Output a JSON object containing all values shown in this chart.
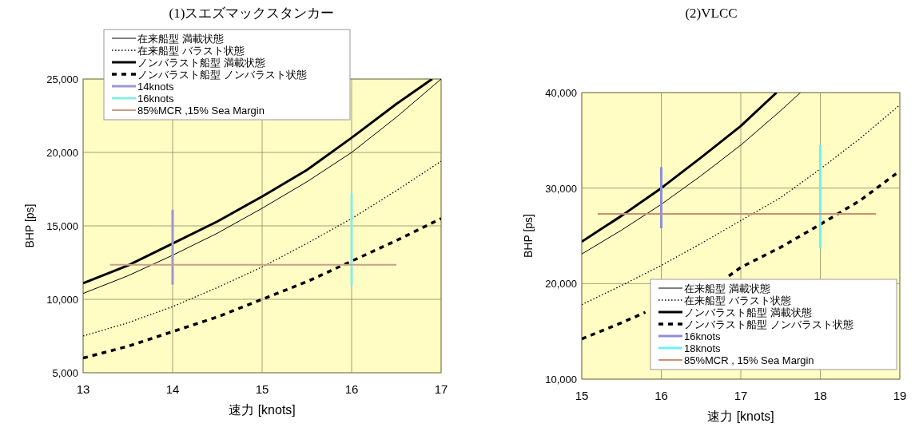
{
  "chart_data": [
    {
      "type": "line",
      "title": "(1)スエズマックスタンカー",
      "xlabel": "速力 [knots]",
      "ylabel": "BHP [ps]",
      "xlim": [
        13,
        17
      ],
      "ylim": [
        5000,
        25000
      ],
      "xticks": [
        13,
        14,
        15,
        16,
        17
      ],
      "yticks": [
        {
          "value": 5000,
          "label": "5,000"
        },
        {
          "value": 10000,
          "label": "10,000"
        },
        {
          "value": 15000,
          "label": "15,000"
        },
        {
          "value": 20000,
          "label": "20,000"
        },
        {
          "value": 25000,
          "label": "25,000"
        }
      ],
      "grid": true,
      "legend": "top left",
      "series": [
        {
          "name": "在来船型 満載状態",
          "color": "#000000",
          "line_style": "solid",
          "x": [
            13,
            13.5,
            14,
            14.5,
            15,
            15.5,
            16,
            16.5,
            17
          ],
          "values": [
            10400,
            11600,
            13000,
            14500,
            16200,
            18000,
            20000,
            22400,
            25000
          ]
        },
        {
          "name": "在来船型 バラスト状態",
          "color": "#000000",
          "line_style": "dotted",
          "x": [
            13,
            13.5,
            14,
            14.5,
            15,
            15.5,
            16,
            16.5,
            17
          ],
          "values": [
            7500,
            8400,
            9500,
            10800,
            12200,
            13800,
            15500,
            17400,
            19400
          ]
        },
        {
          "name": "ノンバラスト船型 満載状態",
          "color": "#000000",
          "line_style": "solid",
          "x": [
            13,
            13.5,
            14,
            14.5,
            15,
            15.5,
            16,
            16.5,
            16.9
          ],
          "values": [
            11100,
            12300,
            13800,
            15300,
            17000,
            18800,
            21000,
            23300,
            25000
          ]
        },
        {
          "name": "ノンバラスト船型 ノンバラスト状態",
          "color": "#000000",
          "line_style": "dashed",
          "x": [
            13,
            13.5,
            14,
            14.5,
            15,
            15.5,
            16,
            16.5,
            17
          ],
          "values": [
            6000,
            6800,
            7800,
            8800,
            10000,
            11200,
            12600,
            14000,
            15500
          ]
        },
        {
          "name": "14knots",
          "color": "#9a98d0",
          "line_style": "solid",
          "x": [
            14,
            14
          ],
          "values": [
            11000,
            16100
          ]
        },
        {
          "name": "16knots",
          "color": "#88ece4",
          "line_style": "solid",
          "x": [
            16,
            16
          ],
          "values": [
            10900,
            17200
          ]
        },
        {
          "name": "85%MCR ,15% Sea Margin",
          "color": "#c8a088",
          "line_style": "solid",
          "x": [
            13.3,
            16.5
          ],
          "values": [
            12350,
            12350
          ]
        }
      ]
    },
    {
      "type": "line",
      "title": "(2)VLCC",
      "xlabel": "速力 [knots]",
      "ylabel": "BHP [ps]",
      "xlim": [
        15,
        19
      ],
      "ylim": [
        10000,
        40000
      ],
      "xticks": [
        15,
        16,
        17,
        18,
        19
      ],
      "yticks": [
        {
          "value": 10000,
          "label": "10,000"
        },
        {
          "value": 20000,
          "label": "20,000"
        },
        {
          "value": 30000,
          "label": "30,000"
        },
        {
          "value": 40000,
          "label": "40,000"
        }
      ],
      "grid": true,
      "legend": "bottom right",
      "series": [
        {
          "name": "在来船型 満載状態",
          "color": "#000000",
          "line_style": "solid",
          "x": [
            15,
            15.5,
            16,
            16.5,
            17,
            17.5,
            17.75
          ],
          "values": [
            23100,
            25600,
            28300,
            31300,
            34500,
            38100,
            40000
          ]
        },
        {
          "name": "在来船型 バラスト状態",
          "color": "#000000",
          "line_style": "dotted",
          "x": [
            15,
            15.5,
            16,
            16.5,
            17,
            17.5,
            18,
            18.5,
            19
          ],
          "values": [
            17800,
            19800,
            21900,
            24200,
            26600,
            29000,
            32000,
            35200,
            38700
          ]
        },
        {
          "name": "ノンバラスト船型 満載状態",
          "color": "#000000",
          "line_style": "solid",
          "x": [
            15,
            15.5,
            16,
            16.5,
            17,
            17.45
          ],
          "values": [
            24400,
            27100,
            30000,
            33200,
            36500,
            40000
          ]
        },
        {
          "name": "ノンバラスト船型 ノンバラスト状態",
          "color": "#000000",
          "line_style": "dashed",
          "x": [
            15,
            15.5,
            15.8,
            16,
            16.5,
            16.85,
            17,
            17.5,
            18,
            18.5,
            19
          ],
          "values": [
            14200,
            15900,
            17000,
            null,
            null,
            20800,
            21700,
            23800,
            26200,
            28700,
            31800
          ]
        },
        {
          "name": "16knots",
          "color": "#8c8ce0",
          "line_style": "solid",
          "x": [
            16,
            16
          ],
          "values": [
            25800,
            32200
          ]
        },
        {
          "name": "18knots",
          "color": "#70f0f0",
          "line_style": "solid",
          "x": [
            18,
            18
          ],
          "values": [
            23700,
            34500
          ]
        },
        {
          "name": "85%MCR , 15% Sea Margin",
          "color": "#cc9070",
          "line_style": "solid",
          "x": [
            15.2,
            18.7
          ],
          "values": [
            27300,
            27300
          ]
        }
      ]
    }
  ]
}
